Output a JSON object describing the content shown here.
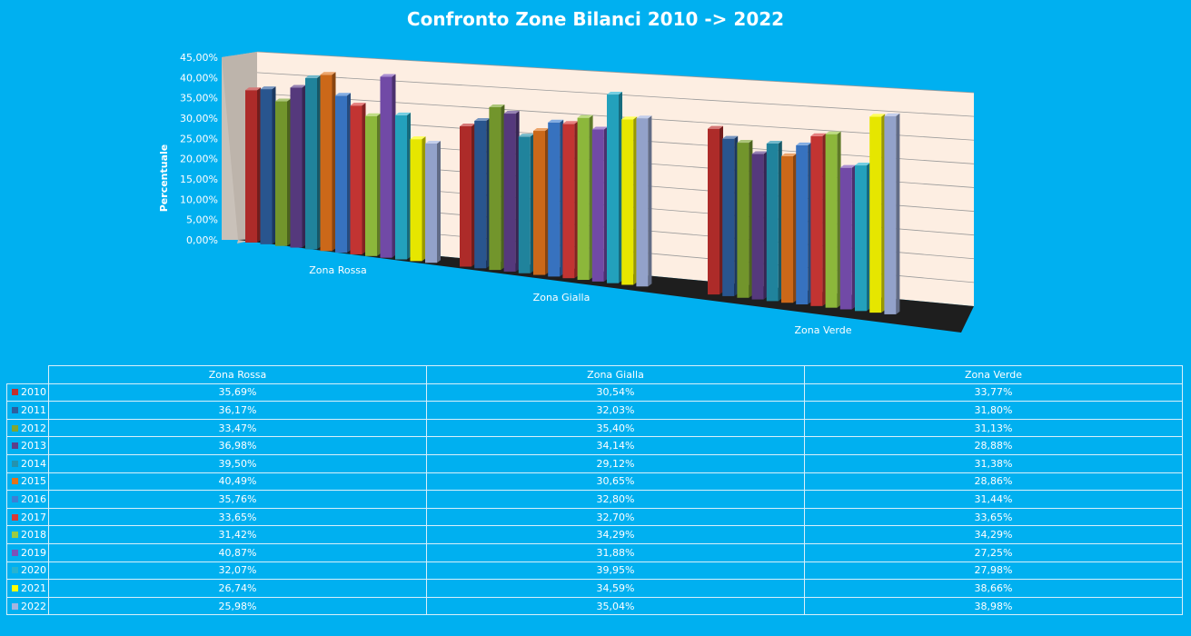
{
  "chart_data": {
    "type": "bar",
    "title": "Confronto Zone Bilanci 2010 -> 2022",
    "ylabel": "Percentuale",
    "xlabel": "",
    "categories": [
      "Zona Rossa",
      "Zona Gialla",
      "Zona Verde"
    ],
    "ylim": [
      0,
      45
    ],
    "yticks": [
      "0,00%",
      "5,00%",
      "10,00%",
      "15,00%",
      "20,00%",
      "25,00%",
      "30,00%",
      "35,00%",
      "40,00%",
      "45,00%"
    ],
    "grid": true,
    "legend": "table",
    "series": [
      {
        "name": "2010",
        "color": "#c0302e",
        "values": [
          35.69,
          30.54,
          33.77
        ],
        "labels": [
          "35,69%",
          "30,54%",
          "33,77%"
        ]
      },
      {
        "name": "2011",
        "color": "#2e5e9e",
        "values": [
          36.17,
          32.03,
          31.8
        ],
        "labels": [
          "36,17%",
          "32,03%",
          "31,80%"
        ]
      },
      {
        "name": "2012",
        "color": "#7fa631",
        "values": [
          33.47,
          35.4,
          31.13
        ],
        "labels": [
          "33,47%",
          "35,40%",
          "31,13%"
        ]
      },
      {
        "name": "2013",
        "color": "#5e3f8a",
        "values": [
          36.98,
          34.14,
          28.88
        ],
        "labels": [
          "36,98%",
          "34,14%",
          "28,88%"
        ]
      },
      {
        "name": "2014",
        "color": "#2492ad",
        "values": [
          39.5,
          29.12,
          31.38
        ],
        "labels": [
          "39,50%",
          "29,12%",
          "31,38%"
        ]
      },
      {
        "name": "2015",
        "color": "#e2731c",
        "values": [
          40.49,
          30.65,
          28.86
        ],
        "labels": [
          "40,49%",
          "30,65%",
          "28,86%"
        ]
      },
      {
        "name": "2016",
        "color": "#3d7fd4",
        "values": [
          35.76,
          32.8,
          31.44
        ],
        "labels": [
          "35,76%",
          "32,80%",
          "31,44%"
        ]
      },
      {
        "name": "2017",
        "color": "#d83a38",
        "values": [
          33.65,
          32.7,
          33.65
        ],
        "labels": [
          "33,65%",
          "32,70%",
          "33,65%"
        ]
      },
      {
        "name": "2018",
        "color": "#9ccb42",
        "values": [
          31.42,
          34.29,
          34.29
        ],
        "labels": [
          "31,42%",
          "34,29%",
          "34,29%"
        ]
      },
      {
        "name": "2019",
        "color": "#7d52b8",
        "values": [
          40.87,
          31.88,
          27.25
        ],
        "labels": [
          "40,87%",
          "31,88%",
          "27,25%"
        ]
      },
      {
        "name": "2020",
        "color": "#27b3d1",
        "values": [
          32.07,
          39.95,
          27.98
        ],
        "labels": [
          "32,07%",
          "39,95%",
          "27,98%"
        ]
      },
      {
        "name": "2021",
        "color": "#ffff00",
        "values": [
          26.74,
          34.59,
          38.66
        ],
        "labels": [
          "26,74%",
          "34,59%",
          "38,66%"
        ]
      },
      {
        "name": "2022",
        "color": "#a3b4e0",
        "values": [
          25.98,
          35.04,
          38.98
        ],
        "labels": [
          "25,98%",
          "35,04%",
          "38,98%"
        ]
      }
    ]
  }
}
